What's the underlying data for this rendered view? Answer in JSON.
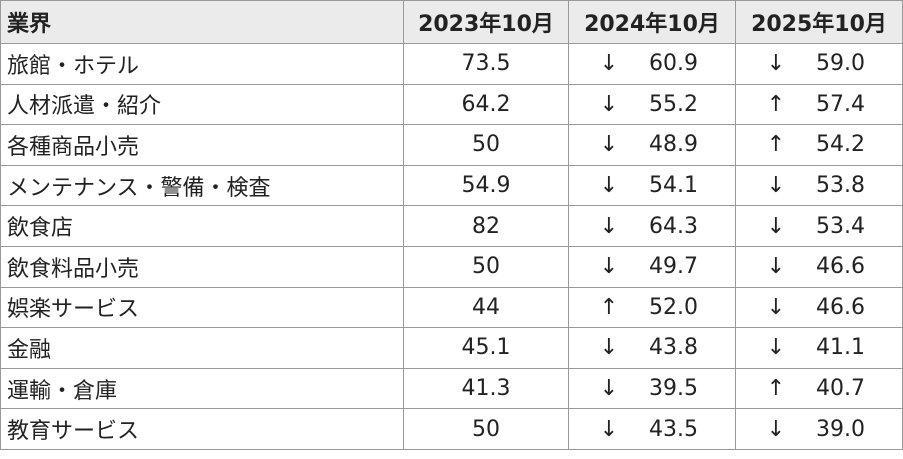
{
  "table": {
    "header": [
      "業界",
      "2023年10月",
      "2024年10月",
      "2025年10月"
    ],
    "rows": [
      [
        "旅館・ホテル",
        "73.5",
        "↓",
        "60.9",
        "↓",
        "59.0"
      ],
      [
        "人材派遣・紹介",
        "64.2",
        "↓",
        "55.2",
        "↑",
        "57.4"
      ],
      [
        "各種商品小売",
        "50",
        "↓",
        "48.9",
        "↑",
        "54.2"
      ],
      [
        "メンテナンス・警備・検査",
        "54.9",
        "↓",
        "54.1",
        "↓",
        "53.8"
      ],
      [
        "飲食店",
        "82",
        "↓",
        "64.3",
        "↓",
        "53.4"
      ],
      [
        "飲食料品小売",
        "50",
        "↓",
        "49.7",
        "↓",
        "46.6"
      ],
      [
        "娯楽サービス",
        "44",
        "↑",
        "52.0",
        "↓",
        "46.6"
      ],
      [
        "金融",
        "45.1",
        "↓",
        "43.8",
        "↓",
        "41.1"
      ],
      [
        "運輸・倉庫",
        "41.3",
        "↓",
        "39.5",
        "↑",
        "40.7"
      ],
      [
        "教育サービス",
        "50",
        "↓",
        "43.5",
        "↓",
        "39.0"
      ]
    ]
  }
}
